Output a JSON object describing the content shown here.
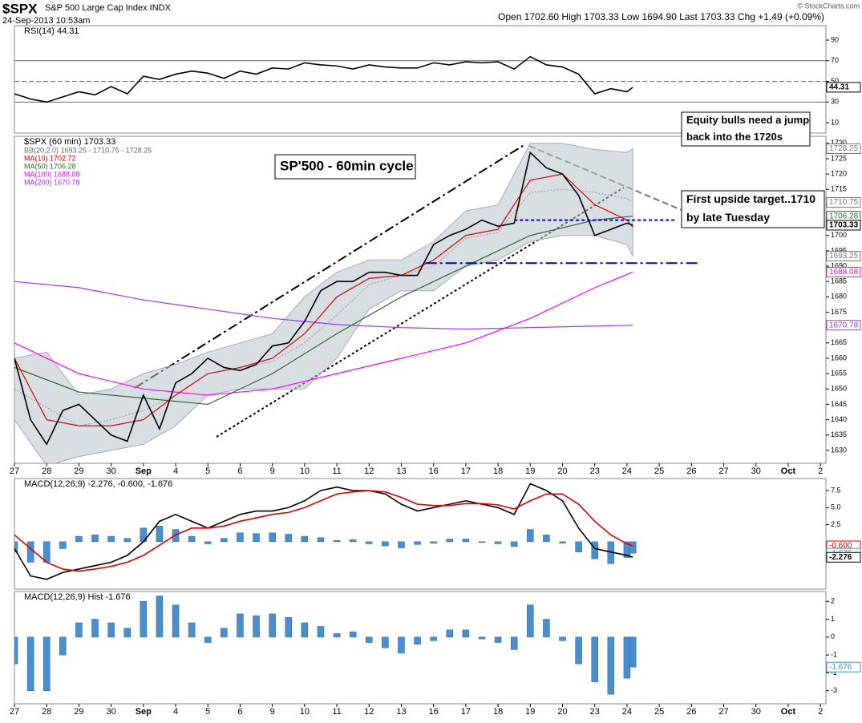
{
  "chart_data": {
    "type": "stock",
    "title": "$SPX",
    "subtitle": "S&P 500 Large Cap Index INDX",
    "date": "24-Sep-2013 10:53am",
    "quote": "Open 1702.60 High 1703.33 Low 1694.90 Last 1703.33 Chg +1.49 (+0.09%)",
    "copyright": "© StockCharts.com",
    "xlim": [
      0,
      25.17
    ],
    "xticks": [
      {
        "value": 0,
        "label": "27"
      },
      {
        "value": 1,
        "label": "28"
      },
      {
        "value": 2,
        "label": "29"
      },
      {
        "value": 3,
        "label": "30"
      },
      {
        "value": 4,
        "label": "Sep"
      },
      {
        "value": 5,
        "label": "4"
      },
      {
        "value": 6,
        "label": "5"
      },
      {
        "value": 7,
        "label": "6"
      },
      {
        "value": 8,
        "label": "9"
      },
      {
        "value": 9,
        "label": "10"
      },
      {
        "value": 10,
        "label": "11"
      },
      {
        "value": 11,
        "label": "12"
      },
      {
        "value": 12,
        "label": "13"
      },
      {
        "value": 13,
        "label": "16"
      },
      {
        "value": 14,
        "label": "17"
      },
      {
        "value": 15,
        "label": "18"
      },
      {
        "value": 16,
        "label": "19"
      },
      {
        "value": 17,
        "label": "20"
      },
      {
        "value": 18,
        "label": "23"
      },
      {
        "value": 19,
        "label": "24"
      },
      {
        "value": 20,
        "label": "25"
      },
      {
        "value": 21,
        "label": "26"
      },
      {
        "value": 22,
        "label": "27"
      },
      {
        "value": 23,
        "label": "30"
      },
      {
        "value": 24,
        "label": "Oct"
      },
      {
        "value": 25,
        "label": "2"
      }
    ],
    "x": [
      0,
      0.5,
      1,
      1.5,
      2,
      2.5,
      3,
      3.5,
      4,
      4.5,
      5,
      5.5,
      6,
      6.5,
      7,
      7.5,
      8,
      8.5,
      9,
      9.5,
      10,
      10.5,
      11,
      11.5,
      12,
      12.5,
      13,
      13.5,
      14,
      14.5,
      15,
      15.5,
      16,
      16.5,
      17,
      17.5,
      18,
      18.5,
      19,
      19.18
    ],
    "panels": [
      {
        "label": "RSI(14) 44.31",
        "ylim": [
          0,
          104
        ],
        "yticks": [
          10,
          30,
          50,
          70,
          90
        ],
        "levels": [
          30,
          50,
          70
        ],
        "series": [
          {
            "color": "#000000",
            "values": [
              38,
              33,
              30,
              35,
              40,
              37,
              45,
              38,
              55,
              52,
              57,
              60,
              58,
              53,
              60,
              57,
              63,
              62,
              68,
              66,
              65,
              62,
              66,
              64,
              63,
              63,
              68,
              66,
              69,
              68,
              69,
              62,
              74,
              66,
              64,
              57,
              38,
              43,
              40,
              44.31
            ]
          }
        ],
        "tags": [
          {
            "value": 44.31,
            "color": "#000000"
          }
        ]
      },
      {
        "label": "$SPX (60 min) 1703.33",
        "ylim": [
          1625.8,
          1732.3
        ],
        "yticks": [
          1630,
          1635,
          1640,
          1645,
          1650,
          1655,
          1660,
          1665,
          1670,
          1675,
          1680,
          1685,
          1690,
          1695,
          1700,
          1705,
          1710,
          1715,
          1720,
          1725,
          1730
        ],
        "band": {
          "name": "BB(20,2.0) 1693.25 - 1710.75 - 1728.25",
          "color": "#b8c4cc",
          "x": [
            0,
            1,
            2,
            3,
            4,
            5,
            6,
            7,
            8,
            9,
            10,
            11,
            12,
            13,
            14,
            15,
            16,
            17,
            18,
            19,
            19.18
          ],
          "upper": [
            1660,
            1662,
            1648,
            1650,
            1655,
            1658,
            1662,
            1665,
            1668,
            1680,
            1688,
            1692,
            1692,
            1698,
            1708,
            1710,
            1730,
            1730,
            1728,
            1727,
            1728.25
          ],
          "middle": [
            1650,
            1644,
            1638,
            1640,
            1643,
            1648,
            1655,
            1657,
            1659,
            1665,
            1674,
            1684,
            1687,
            1690,
            1699,
            1701,
            1714,
            1715,
            1714,
            1712,
            1710.75
          ],
          "lower": [
            1640,
            1625,
            1628,
            1630,
            1632,
            1638,
            1648,
            1650,
            1650,
            1650,
            1660,
            1676,
            1682,
            1682,
            1690,
            1692,
            1698,
            1700,
            1700,
            1697,
            1693.25
          ]
        },
        "series": [
          {
            "name": "MA(200) 1670.78",
            "color": "#9933ff",
            "x": [
              0,
              2,
              4,
              6,
              8,
              10,
              12,
              14,
              16,
              18,
              19.18
            ],
            "values": [
              1685,
              1683,
              1679,
              1676,
              1673,
              1671,
              1670,
              1669.5,
              1670,
              1670.5,
              1670.78
            ]
          },
          {
            "name": "MA(100) 1688.08",
            "color": "#ff00ff",
            "x": [
              0,
              2,
              4,
              6,
              8,
              10,
              12,
              14,
              16,
              18,
              19.18
            ],
            "values": [
              1665,
              1655,
              1650,
              1648,
              1650,
              1655,
              1660,
              1665,
              1673,
              1683,
              1688.08
            ]
          },
          {
            "name": "MA(50) 1706.28",
            "color": "#336633",
            "x": [
              0,
              2,
              4,
              6,
              8,
              10,
              12,
              14,
              16,
              18,
              19.18
            ],
            "values": [
              1657,
              1649,
              1647,
              1645,
              1655,
              1668,
              1680,
              1690,
              1700,
              1705,
              1706.28
            ]
          },
          {
            "name": "MA(10) 1702.72",
            "color": "#dd0000",
            "x": [
              0,
              1,
              2,
              3,
              4,
              5,
              6,
              7,
              8,
              9,
              10,
              11,
              12,
              13,
              14,
              15,
              16,
              17,
              18,
              19,
              19.18
            ],
            "values": [
              1660,
              1640,
              1638,
              1638,
              1640,
              1648,
              1655,
              1657,
              1660,
              1668,
              1680,
              1686,
              1687,
              1692,
              1700,
              1702,
              1718,
              1720,
              1710,
              1705,
              1702.72
            ]
          },
          {
            "color": "#000000",
            "values": [
              1660,
              1640,
              1632,
              1643,
              1645,
              1640,
              1635,
              1633,
              1648,
              1637,
              1652,
              1655,
              1660,
              1657,
              1656,
              1658,
              1664,
              1665,
              1672,
              1682,
              1685,
              1685,
              1688,
              1688,
              1687,
              1687,
              1697,
              1700,
              1702,
              1705,
              1703,
              1704,
              1727,
              1722,
              1720,
              1713,
              1700,
              1702,
              1704,
              1703.33
            ]
          }
        ],
        "hlines": [
          {
            "value": 1705,
            "x": [
              15.5,
              20.5
            ],
            "color": "#0000cc",
            "dash": "4 3"
          },
          {
            "value": 1691,
            "x": [
              12.75,
              21.2
            ],
            "color": "#0000cc",
            "dash": "14 4 3 4"
          }
        ],
        "tags": [
          {
            "value": 1728.25,
            "color": "#777777"
          },
          {
            "value": 1710.75,
            "color": "#777777"
          },
          {
            "value": 1706.28,
            "color": "#336633"
          },
          {
            "value": 1703.33,
            "color": "#000000"
          },
          {
            "value": 1693.25,
            "color": "#777777"
          },
          {
            "value": 1688.08,
            "color": "#ff00ff"
          },
          {
            "value": 1670.78,
            "color": "#9933ff"
          }
        ],
        "annotations": [
          {
            "lines": [
              "SP'500 - 60min cycle"
            ]
          },
          {
            "lines": [
              "Equity bulls need a jump",
              "back into the 1720s"
            ]
          },
          {
            "lines": [
              "First upside target..1710",
              "by late Tuesday"
            ]
          }
        ]
      },
      {
        "label": "MACD(12,26,9) -2.276, -0.600, -1.676",
        "ylim": [
          -6.94,
          9.26
        ],
        "yticks": [
          {
            "value": 2.5,
            "label": "2.5"
          },
          {
            "value": 5,
            "label": "5.0"
          },
          {
            "value": 7.5,
            "label": "7.5"
          }
        ],
        "hist": {
          "color": "#4a8ed0",
          "values": [
            -1.5,
            -3,
            -3,
            -1,
            0.8,
            1,
            0.8,
            0.5,
            2,
            2.3,
            1.8,
            0.8,
            -0.3,
            0.5,
            1.3,
            1.2,
            1.3,
            1.1,
            0.8,
            0.6,
            0.2,
            0.3,
            -0.3,
            -0.6,
            -0.9,
            -0.4,
            -0.2,
            0.4,
            0.4,
            -0.1,
            -0.3,
            -0.7,
            1.8,
            1,
            -0.2,
            -1.5,
            -2.5,
            -3.2,
            -2.3,
            -1.676
          ]
        },
        "series": [
          {
            "color": "#000000",
            "values": [
              -1,
              -5,
              -5.5,
              -4.5,
              -4,
              -3.5,
              -3,
              -2,
              0,
              3,
              4,
              3,
              2,
              3,
              4,
              4.5,
              4.5,
              5,
              6,
              7.5,
              8,
              7.5,
              7.5,
              7,
              5.5,
              4.5,
              5,
              5.5,
              6,
              5.5,
              5,
              4,
              8.5,
              7.5,
              6,
              2,
              -1,
              -1.5,
              -2,
              -2.276
            ]
          },
          {
            "color": "#dd0000",
            "values": [
              1,
              -1,
              -3,
              -4,
              -4.3,
              -4,
              -3.6,
              -3,
              -2,
              -0.5,
              1,
              2,
              2,
              2.3,
              3,
              3.5,
              4,
              4.3,
              5,
              6,
              7,
              7.3,
              7.5,
              7.3,
              6.5,
              5.5,
              5.3,
              5.3,
              5.6,
              5.6,
              5.4,
              4.8,
              6,
              7,
              7,
              5.5,
              3,
              1,
              -0.3,
              -0.6
            ]
          }
        ],
        "tags": [
          {
            "value": -0.6,
            "label": "-0.600",
            "color": "#dd0000"
          },
          {
            "value": -1.676,
            "label": "-1.676",
            "color": "#4a8ed0"
          },
          {
            "value": -2.276,
            "label": "-2.276",
            "color": "#000000"
          }
        ]
      },
      {
        "label": "MACD(12,26,9) Hist -1.676",
        "ylim": [
          -3.73,
          2.55
        ],
        "yticks": [
          -3,
          -2,
          -1,
          0,
          1,
          2
        ],
        "hist": {
          "color": "#4a8ed0",
          "values": [
            -1.5,
            -3,
            -3,
            -1,
            0.8,
            1,
            0.8,
            0.5,
            2,
            2.3,
            1.8,
            0.8,
            -0.3,
            0.5,
            1.3,
            1.2,
            1.3,
            1.1,
            0.8,
            0.6,
            0.2,
            0.3,
            -0.3,
            -0.6,
            -0.9,
            -0.4,
            -0.2,
            0.4,
            0.4,
            -0.1,
            -0.3,
            -0.7,
            1.8,
            1,
            -0.2,
            -1.5,
            -2.5,
            -3.2,
            -2.3,
            -1.676
          ]
        },
        "series": [],
        "tags": [
          {
            "value": -1.676,
            "color": "#4a8ed0"
          }
        ]
      }
    ]
  }
}
